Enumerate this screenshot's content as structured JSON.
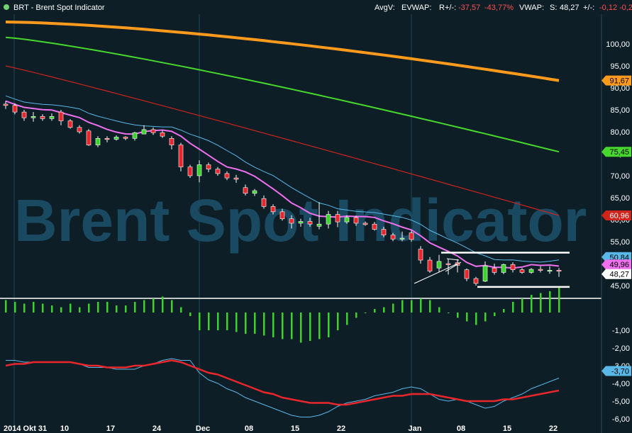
{
  "header": {
    "title": "BRT - Brent Spot Indicator",
    "avgv": "AvgV:",
    "evwap": "EVWAP:",
    "r_label": "R+/-:",
    "r_value": "-37,57",
    "r_pct": "-43,77%",
    "vwap": "VWAP:",
    "s_label": "S:",
    "s_value": "48,27",
    "pm_label": "+/-:",
    "pm_value": "-0,12",
    "pm_pct": "-0,2"
  },
  "watermark": "Brent Spot Indicator",
  "colors": {
    "background": "#0d1e26",
    "up": "#3cd42c",
    "down": "#e8262c",
    "ma_orange": "#ff9a1c",
    "ma_green": "#46d82c",
    "ma_red": "#d0241c",
    "ma_blue": "#5ab8e8",
    "ma_magenta": "#ee70ee"
  },
  "chart_data": [
    {
      "type": "candlestick",
      "ylim": [
        42,
        108
      ],
      "yticks": [
        "100,00",
        "95,00",
        "90,00",
        "85,00",
        "80,00",
        "75,00",
        "70,00",
        "65,00",
        "60,00",
        "55,00",
        "50,00",
        "45,00"
      ],
      "xlabels": [
        {
          "i": 0,
          "label": "2014 Okt 31"
        },
        {
          "i": 6,
          "label": "10"
        },
        {
          "i": 11,
          "label": "17"
        },
        {
          "i": 16,
          "label": "24"
        },
        {
          "i": 21,
          "label": "Dec"
        },
        {
          "i": 26,
          "label": "08"
        },
        {
          "i": 31,
          "label": "15"
        },
        {
          "i": 36,
          "label": "22"
        },
        {
          "i": 44,
          "label": "Jan"
        },
        {
          "i": 49,
          "label": "08"
        },
        {
          "i": 54,
          "label": "15"
        },
        {
          "i": 59,
          "label": "22"
        }
      ],
      "candles": [
        [
          86.3,
          87.0,
          85.2,
          86.0
        ],
        [
          86.0,
          86.5,
          84.0,
          84.5
        ],
        [
          84.5,
          85.0,
          82.5,
          83.2
        ],
        [
          83.2,
          84.5,
          82.3,
          83.5
        ],
        [
          83.5,
          84.0,
          82.5,
          83.0
        ],
        [
          83.0,
          84.2,
          82.5,
          83.5
        ],
        [
          84.5,
          85.0,
          81.5,
          82.5
        ],
        [
          82.5,
          82.9,
          80.7,
          81.0
        ],
        [
          81.0,
          81.5,
          79.6,
          80.0
        ],
        [
          80.2,
          80.6,
          76.8,
          77.0
        ],
        [
          77.0,
          79.0,
          76.5,
          78.5
        ],
        [
          78.5,
          79.0,
          77.6,
          78.3
        ],
        [
          78.3,
          79.2,
          78.0,
          78.8
        ],
        [
          78.8,
          79.0,
          78.1,
          78.5
        ],
        [
          78.5,
          80.0,
          78.0,
          79.8
        ],
        [
          79.5,
          81.5,
          79.5,
          80.5
        ],
        [
          80.5,
          81.0,
          79.3,
          79.8
        ],
        [
          79.8,
          80.3,
          78.6,
          79.0
        ],
        [
          78.5,
          79.0,
          76.0,
          77.0
        ],
        [
          77.0,
          77.5,
          71.0,
          72.0
        ],
        [
          72.0,
          72.5,
          69.5,
          70.0
        ],
        [
          70.0,
          73.5,
          68.5,
          72.5
        ],
        [
          72.5,
          73.0,
          70.8,
          71.5
        ],
        [
          71.5,
          72.0,
          70.0,
          70.5
        ],
        [
          70.5,
          71.0,
          69.0,
          69.5
        ],
        [
          69.5,
          70.2,
          68.4,
          69.2
        ],
        [
          67.3,
          68.0,
          65.5,
          66.0
        ],
        [
          66.0,
          67.0,
          65.4,
          66.6
        ],
        [
          64.8,
          65.5,
          62.5,
          63.0
        ],
        [
          63.0,
          63.5,
          61.2,
          61.8
        ],
        [
          61.8,
          62.5,
          59.8,
          60.2
        ],
        [
          60.2,
          61.0,
          58.0,
          59.2
        ],
        [
          59.2,
          60.2,
          58.4,
          59.6
        ],
        [
          59.6,
          60.4,
          58.4,
          59.0
        ],
        [
          58.5,
          64.0,
          57.8,
          59.0
        ],
        [
          59.0,
          62.0,
          58.0,
          61.2
        ],
        [
          61.2,
          62.0,
          58.3,
          59.5
        ],
        [
          59.5,
          61.0,
          59.1,
          60.5
        ],
        [
          60.5,
          60.9,
          58.6,
          59.2
        ],
        [
          59.2,
          59.6,
          58.6,
          58.9
        ],
        [
          59.0,
          59.5,
          57.5,
          57.8
        ],
        [
          57.8,
          58.4,
          56.0,
          56.5
        ],
        [
          56.5,
          57.0,
          55.1,
          55.6
        ],
        [
          55.6,
          57.3,
          55.1,
          55.8
        ],
        [
          57.0,
          57.5,
          55.0,
          55.5
        ],
        [
          53.3,
          54.0,
          50.0,
          50.8
        ],
        [
          50.8,
          51.5,
          47.9,
          48.3
        ],
        [
          49.0,
          52.0,
          48.0,
          50.5
        ],
        [
          50.0,
          51.0,
          47.5,
          49.8
        ],
        [
          50.2,
          51.0,
          48.0,
          49.6
        ],
        [
          48.6,
          48.9,
          46.0,
          46.6
        ],
        [
          46.6,
          47.0,
          45.0,
          45.5
        ],
        [
          46.0,
          50.5,
          45.8,
          49.5
        ],
        [
          49.0,
          50.0,
          47.5,
          48.0
        ],
        [
          48.0,
          50.0,
          47.6,
          49.8
        ],
        [
          49.8,
          50.3,
          48.0,
          48.6
        ],
        [
          48.6,
          49.0,
          47.7,
          48.0
        ],
        [
          48.0,
          49.0,
          47.7,
          48.7
        ],
        [
          48.7,
          49.4,
          48.0,
          48.5
        ],
        [
          48.5,
          49.4,
          47.7,
          48.5
        ],
        [
          48.5,
          49.0,
          47.0,
          48.27
        ]
      ],
      "moving_averages": {
        "orange_last": "91,67",
        "green_last": "75,45",
        "red_last": "60,96",
        "blue_last": "50,84",
        "magenta_last": "49,96",
        "price_last": "48,27"
      }
    },
    {
      "type": "bar",
      "ylim": [
        -7.5,
        1.5
      ],
      "yticks": [
        "-1,00",
        "-2,00",
        "-3,00",
        "-4,00",
        "-5,00",
        "-6,00"
      ],
      "values": [
        0.7,
        0.6,
        0.5,
        0.6,
        0.5,
        0.4,
        0.3,
        0.5,
        0.3,
        0.5,
        0.6,
        0.6,
        0.4,
        0.4,
        0.6,
        0.7,
        0.8,
        0.9,
        0.7,
        0.3,
        -0.2,
        -1.0,
        -1.0,
        -1.0,
        -1.0,
        -1.1,
        -1.2,
        -1.2,
        -1.3,
        -1.4,
        -1.5,
        -1.5,
        -1.7,
        -1.6,
        -1.5,
        -1.4,
        -1.0,
        -0.7,
        -0.3,
        0.0,
        0.2,
        0.3,
        0.5,
        0.7,
        0.7,
        0.8,
        0.7,
        0.3,
        0.0,
        -0.3,
        -0.5,
        -0.7,
        -0.5,
        -0.2,
        0.2,
        0.6,
        0.8,
        1.0,
        1.1,
        1.2,
        1.4
      ],
      "fast_line": [
        -2.7,
        -2.7,
        -2.8,
        -2.8,
        -2.8,
        -2.8,
        -2.8,
        -2.8,
        -2.9,
        -3.1,
        -3.1,
        -3.1,
        -3.2,
        -3.2,
        -3.2,
        -3.0,
        -2.9,
        -2.7,
        -2.6,
        -2.7,
        -2.7,
        -3.4,
        -3.8,
        -4.0,
        -4.3,
        -4.5,
        -4.8,
        -5.0,
        -5.2,
        -5.4,
        -5.6,
        -5.8,
        -5.9,
        -5.9,
        -5.8,
        -5.6,
        -5.3,
        -5.1,
        -5.0,
        -4.9,
        -4.7,
        -4.6,
        -4.5,
        -4.3,
        -4.2,
        -4.3,
        -4.6,
        -4.9,
        -5.0,
        -4.9,
        -5.0,
        -5.2,
        -5.4,
        -5.3,
        -5.0,
        -4.8,
        -4.6,
        -4.3,
        -4.1,
        -3.9,
        -3.7
      ],
      "slow_line": [
        -3.0,
        -2.9,
        -2.9,
        -2.8,
        -2.8,
        -2.8,
        -2.8,
        -2.8,
        -2.9,
        -3.0,
        -3.0,
        -3.1,
        -3.1,
        -3.1,
        -3.0,
        -3.0,
        -2.9,
        -2.8,
        -2.7,
        -2.8,
        -3.0,
        -3.2,
        -3.4,
        -3.5,
        -3.7,
        -3.9,
        -4.1,
        -4.3,
        -4.5,
        -4.6,
        -4.8,
        -4.9,
        -5.0,
        -5.1,
        -5.1,
        -5.1,
        -5.2,
        -5.2,
        -5.1,
        -5.0,
        -4.9,
        -4.8,
        -4.7,
        -4.7,
        -4.6,
        -4.6,
        -4.6,
        -4.7,
        -4.8,
        -4.9,
        -5.0,
        -5.0,
        -5.0,
        -5.0,
        -4.9,
        -4.9,
        -4.8,
        -4.7,
        -4.6,
        -4.5,
        -4.4
      ],
      "last_label": "-3,70"
    }
  ]
}
